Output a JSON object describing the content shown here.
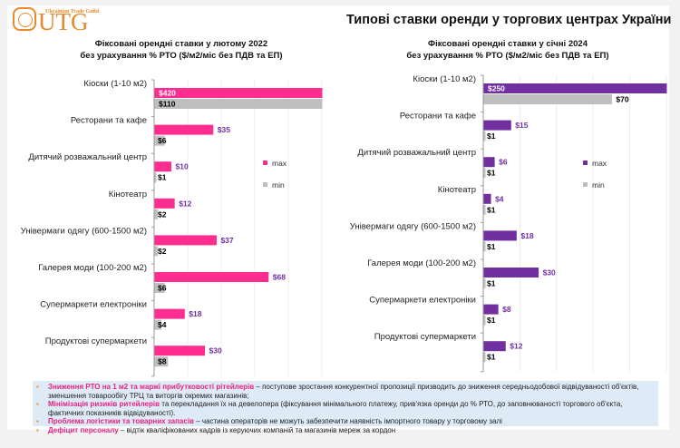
{
  "logo": {
    "tagline": "Ukrainian Trade Guild",
    "text": "UTG",
    "color": "#e8892b"
  },
  "main_title": "Типові ставки оренди у торгових центрах України",
  "colors": {
    "max_2022": "#ff2d8f",
    "max_2024": "#7030a0",
    "min": "#bfbfbf",
    "max_label": "#7030a0",
    "min_label": "#000000",
    "highlight": "#e6237f",
    "bullet": "#e8892b",
    "notes_bg": "#deebf7"
  },
  "chart_data": [
    {
      "type": "bar",
      "orientation": "horizontal",
      "title_line1": "Фіксовані орендні ставки у лютому 2022",
      "title_line2": "без урахування % РТО ($/м2/міс без ПДВ та ЕП)",
      "categories": [
        "Кіоски (1-10 м2)",
        "Ресторани та кафе",
        "Дитячий розважальний центр",
        "Кінотеатр",
        "Універмаги одягу (600-1500 м2)",
        "Галерея моди (100-200 м2)",
        "Супермаркети електроніки",
        "Продуктові супермаркети"
      ],
      "series": [
        {
          "name": "max",
          "values": [
            420,
            35,
            10,
            12,
            37,
            68,
            18,
            30
          ],
          "labels": [
            "$420",
            "$35",
            "$10",
            "$12",
            "$37",
            "$68",
            "$18",
            "$30"
          ]
        },
        {
          "name": "min",
          "values": [
            110,
            6,
            1,
            2,
            2,
            6,
            4,
            8
          ],
          "labels": [
            "$110",
            "$6",
            "$1",
            "$2",
            "$2",
            "$6",
            "$4",
            "$8"
          ]
        }
      ],
      "xlim": [
        0,
        100
      ],
      "grid": true,
      "legend": "right",
      "legend_labels": [
        "max",
        "min"
      ]
    },
    {
      "type": "bar",
      "orientation": "horizontal",
      "title_line1": "Фіксовані орендні ставки у січні 2024",
      "title_line2": "без урахування % РТО ($/м2/міс без ПДВ та ЕП)",
      "categories": [
        "Кіоски (1-10 м2)",
        "Ресторани та кафе",
        "Дитячий розважальний центр",
        "Кінотеатр",
        "Універмаги одягу (600-1500 м2)",
        "Галерея моди (100-200 м2)",
        "Супермаркети електроніки",
        "Продуктові супермаркети"
      ],
      "series": [
        {
          "name": "max",
          "values": [
            250,
            15,
            6,
            4,
            18,
            30,
            8,
            12
          ],
          "labels": [
            "$250",
            "$15",
            "$6",
            "$4",
            "$18",
            "$30",
            "$8",
            "$12"
          ]
        },
        {
          "name": "min",
          "values": [
            70,
            1,
            1,
            1,
            1,
            1,
            1,
            1
          ],
          "labels": [
            "$70",
            "$1",
            "$1",
            "$1",
            "$1",
            "$1",
            "$1",
            "$1"
          ]
        }
      ],
      "xlim": [
        0,
        100
      ],
      "grid": true,
      "legend": "right",
      "legend_labels": [
        "max",
        "min"
      ]
    }
  ],
  "notes": [
    {
      "highlight": "Зниження РТО на 1 м2 та маржі прибутковості рітейлерів",
      "text": " – поступове зростання конкурентної пропозиції призводить до зниження середньодобової відвідуваності об'єктів, зменшення товарообігу ТРЦ  та виторгів окремих магазинів;"
    },
    {
      "highlight": "Мінімізація ризиків ритейлерів",
      "text": " та перекладання їх на девелопера (фіксування мінімального платежу, прив'язка оренди до % РТО, до заповнюваності торгового об'єкта, фактичних показників відвідуваності)."
    },
    {
      "highlight": "Проблема логістики та товарних запасів",
      "text": " – частина операторів не можуть забезпечити наявність імпортного товару у торговому залі"
    },
    {
      "highlight": "Дефіцит персоналу",
      "text": " – відтік кваліфікованих кадрів із керуючих компаній та магазинів мереж за кордон"
    }
  ],
  "bullet_glyph": "▪"
}
